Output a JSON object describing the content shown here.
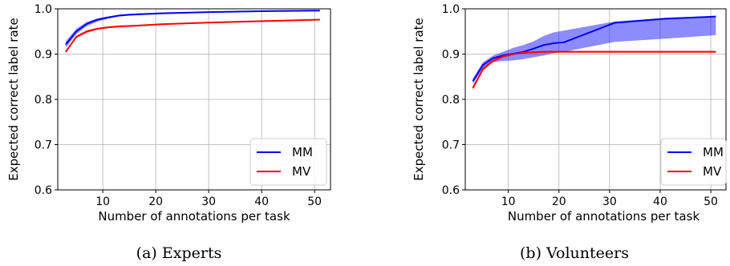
{
  "chart_data": [
    {
      "type": "line",
      "caption": "(a) Experts",
      "xlabel": "Number of annotations per task",
      "ylabel": "Expected correct label rate",
      "xlim": [
        1.5,
        53
      ],
      "ylim": [
        0.6,
        1.0
      ],
      "xticks": [
        10,
        20,
        30,
        40,
        50
      ],
      "yticks": [
        0.6,
        0.7,
        0.8,
        0.9,
        1.0
      ],
      "grid": true,
      "legend": "bottom-right",
      "series": [
        {
          "name": "MM",
          "color": "#0000ff",
          "x": [
            3,
            5,
            7,
            9,
            11,
            13,
            15,
            17,
            21,
            31,
            41,
            51
          ],
          "y": [
            0.921,
            0.95,
            0.967,
            0.976,
            0.981,
            0.985,
            0.987,
            0.988,
            0.99,
            0.993,
            0.995,
            0.996
          ],
          "band_low": [
            0.914,
            0.944,
            0.962,
            0.972,
            0.978,
            0.983,
            0.985,
            0.986,
            0.988,
            0.992,
            0.994,
            0.995
          ],
          "band_high": [
            0.928,
            0.956,
            0.971,
            0.979,
            0.983,
            0.987,
            0.989,
            0.99,
            0.991,
            0.994,
            0.996,
            0.997
          ]
        },
        {
          "name": "MV",
          "color": "#ff0000",
          "x": [
            3,
            5,
            7,
            9,
            11,
            13,
            15,
            17,
            21,
            31,
            41,
            51
          ],
          "y": [
            0.905,
            0.938,
            0.95,
            0.956,
            0.959,
            0.961,
            0.962,
            0.963,
            0.966,
            0.97,
            0.973,
            0.976
          ],
          "band_low": [
            0.902,
            0.935,
            0.947,
            0.954,
            0.957,
            0.959,
            0.961,
            0.962,
            0.965,
            0.969,
            0.972,
            0.975
          ],
          "band_high": [
            0.908,
            0.941,
            0.953,
            0.958,
            0.961,
            0.963,
            0.964,
            0.965,
            0.967,
            0.971,
            0.974,
            0.977
          ]
        }
      ]
    },
    {
      "type": "line",
      "caption": "(b) Volunteers",
      "xlabel": "Number of annotations per task",
      "ylabel": "Expected correct label rate",
      "xlim": [
        1.5,
        53
      ],
      "ylim": [
        0.6,
        1.0
      ],
      "xticks": [
        10,
        20,
        30,
        40,
        50
      ],
      "yticks": [
        0.6,
        0.7,
        0.8,
        0.9,
        1.0
      ],
      "grid": true,
      "legend": "bottom-right",
      "series": [
        {
          "name": "MM",
          "color": "#0000ff",
          "x": [
            3,
            5,
            7,
            9,
            11,
            13,
            15,
            17,
            19,
            21,
            31,
            41,
            51
          ],
          "y": [
            0.84,
            0.876,
            0.891,
            0.897,
            0.901,
            0.905,
            0.912,
            0.92,
            0.924,
            0.926,
            0.969,
            0.978,
            0.983
          ],
          "band_low": [
            0.834,
            0.87,
            0.882,
            0.885,
            0.886,
            0.889,
            0.893,
            0.897,
            0.902,
            0.905,
            0.927,
            0.934,
            0.942
          ],
          "band_high": [
            0.846,
            0.882,
            0.897,
            0.905,
            0.914,
            0.92,
            0.928,
            0.94,
            0.948,
            0.952,
            0.972,
            0.98,
            0.984
          ]
        },
        {
          "name": "MV",
          "color": "#ff0000",
          "x": [
            3,
            5,
            7,
            9,
            11,
            13,
            15,
            17,
            19,
            21,
            31,
            41,
            51
          ],
          "y": [
            0.825,
            0.867,
            0.885,
            0.895,
            0.9,
            0.903,
            0.904,
            0.905,
            0.905,
            0.905,
            0.905,
            0.905,
            0.905
          ],
          "band_low": [
            0.82,
            0.863,
            0.882,
            0.892,
            0.898,
            0.901,
            0.902,
            0.903,
            0.903,
            0.903,
            0.903,
            0.903,
            0.903
          ],
          "band_high": [
            0.83,
            0.871,
            0.888,
            0.898,
            0.902,
            0.905,
            0.906,
            0.907,
            0.907,
            0.907,
            0.907,
            0.907,
            0.907
          ]
        }
      ]
    }
  ]
}
